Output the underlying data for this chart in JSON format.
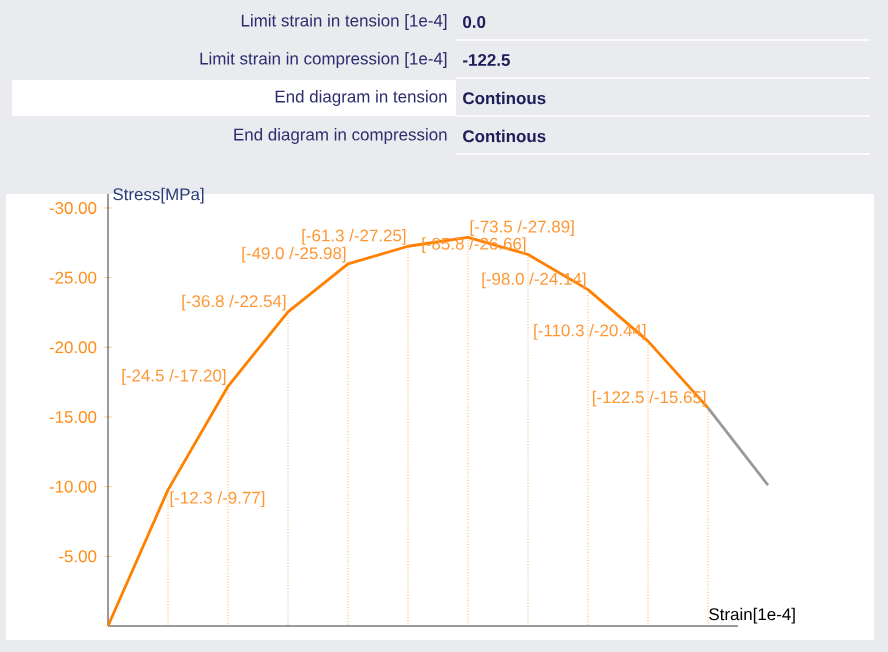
{
  "chart_data": {
    "type": "line",
    "xlabel": "Strain[1e-4]",
    "ylabel": "Stress[MPa]",
    "annotations": [
      "Limit strain in tension [1e-4]",
      "0.0",
      "Limit strain in compression [1e-4]",
      "-122.5",
      "End diagram in tension",
      "Continous",
      "End diagram in compression",
      "Continous"
    ],
    "categories": [
      null,
      null,
      null,
      null,
      null,
      null,
      null,
      null,
      null,
      null,
      null,
      null
    ],
    "ylim": [
      0,
      -31
    ],
    "yticks": [
      {
        "value": -5,
        "label": "-5.00"
      },
      {
        "value": -10,
        "label": "-10.00"
      },
      {
        "value": -15,
        "label": "-15.00"
      },
      {
        "value": -20,
        "label": "-20.00"
      },
      {
        "value": -25,
        "label": "-25.00"
      },
      {
        "value": -30,
        "label": "-30.00"
      }
    ],
    "tick_labels": "y",
    "grid": "x",
    "series": [
      {
        "color": "#ff8000",
        "values": [
          0,
          -9.77,
          -17.2,
          -22.54,
          -25.98,
          -27.25,
          -27.89,
          -26.66,
          -24.14,
          -20.44,
          -15.65,
          null
        ],
        "value_labels": [
          null,
          "[-12.3 /-9.77]",
          "[-24.5 /-17.20]",
          "[-36.8 /-22.54]",
          "[-49.0 /-25.98]",
          "[-61.3 /-27.25]",
          "[-73.5 /-27.89]",
          "[-85.8 /-26.66]",
          "[-98.0 /-24.14]",
          "[-110.3 /-20.44]",
          "[-122.5 /-15.65]",
          null
        ]
      },
      {
        "color": "#999999",
        "values": [
          null,
          null,
          null,
          null,
          null,
          null,
          null,
          null,
          null,
          null,
          -15.65,
          -10.1
        ]
      }
    ]
  }
}
